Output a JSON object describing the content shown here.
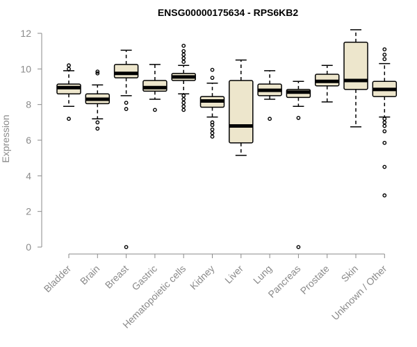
{
  "chart_data": {
    "type": "boxplot",
    "title": "ENSG00000175634 - RPS6KB2",
    "xlabel": "",
    "ylabel": "Expression",
    "ylim": [
      0,
      12
    ],
    "yticks": [
      0,
      2,
      4,
      6,
      8,
      10,
      12
    ],
    "box_color": "#ede6cc",
    "categories": [
      "Bladder",
      "Brain",
      "Breast",
      "Gastric",
      "Hematopoietic cells",
      "Kidney",
      "Liver",
      "Lung",
      "Pancreas",
      "Prostate",
      "Skin",
      "Unknown / Other"
    ],
    "series": [
      {
        "name": "Bladder",
        "whisker_low": 7.9,
        "q1": 8.6,
        "median": 8.95,
        "q3": 9.15,
        "whisker_high": 9.9,
        "outliers": [
          7.2,
          10.0,
          10.2
        ]
      },
      {
        "name": "Brain",
        "whisker_low": 7.2,
        "q1": 8.05,
        "median": 8.3,
        "q3": 8.6,
        "whisker_high": 9.1,
        "outliers": [
          6.65,
          7.0,
          9.75,
          9.85
        ]
      },
      {
        "name": "Breast",
        "whisker_low": 8.5,
        "q1": 9.5,
        "median": 9.75,
        "q3": 10.25,
        "whisker_high": 11.05,
        "outliers": [
          0.0,
          7.75,
          8.1
        ]
      },
      {
        "name": "Gastric",
        "whisker_low": 8.3,
        "q1": 8.75,
        "median": 8.95,
        "q3": 9.35,
        "whisker_high": 10.25,
        "outliers": [
          7.7
        ]
      },
      {
        "name": "Hematopoietic cells",
        "whisker_low": 8.6,
        "q1": 9.35,
        "median": 9.55,
        "q3": 9.75,
        "whisker_high": 10.2,
        "outliers": [
          7.7,
          7.9,
          8.1,
          8.3,
          8.5,
          10.4,
          10.6,
          10.8,
          11.0,
          11.3
        ]
      },
      {
        "name": "Kidney",
        "whisker_low": 7.3,
        "q1": 7.85,
        "median": 8.2,
        "q3": 8.45,
        "whisker_high": 9.2,
        "outliers": [
          6.2,
          6.4,
          6.6,
          6.85,
          7.0,
          9.5,
          9.95
        ]
      },
      {
        "name": "Liver",
        "whisker_low": 5.15,
        "q1": 5.85,
        "median": 6.8,
        "q3": 9.35,
        "whisker_high": 10.5,
        "outliers": []
      },
      {
        "name": "Lung",
        "whisker_low": 8.3,
        "q1": 8.5,
        "median": 8.8,
        "q3": 9.15,
        "whisker_high": 9.9,
        "outliers": [
          7.2
        ]
      },
      {
        "name": "Pancreas",
        "whisker_low": 7.9,
        "q1": 8.4,
        "median": 8.7,
        "q3": 8.85,
        "whisker_high": 9.3,
        "outliers": [
          0.0,
          7.25
        ]
      },
      {
        "name": "Prostate",
        "whisker_low": 8.15,
        "q1": 9.05,
        "median": 9.3,
        "q3": 9.7,
        "whisker_high": 10.2,
        "outliers": []
      },
      {
        "name": "Skin",
        "whisker_low": 6.75,
        "q1": 8.85,
        "median": 9.35,
        "q3": 11.5,
        "whisker_high": 12.2,
        "outliers": []
      },
      {
        "name": "Unknown / Other",
        "whisker_low": 7.3,
        "q1": 8.45,
        "median": 8.85,
        "q3": 9.3,
        "whisker_high": 10.3,
        "outliers": [
          2.9,
          4.5,
          5.85,
          6.5,
          6.8,
          7.0,
          7.2,
          10.55,
          10.8,
          11.1
        ]
      }
    ]
  }
}
